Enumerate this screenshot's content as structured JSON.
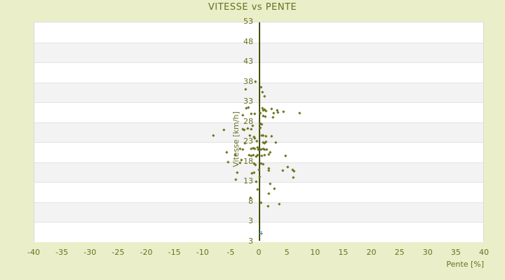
{
  "page": {
    "background": "#eaefc9"
  },
  "chart_data": {
    "type": "scatter",
    "title": "VITESSE vs PENTE",
    "xlabel": "Pente [%]",
    "ylabel": "Vitesse [km/h]",
    "xlim": [
      -40,
      40
    ],
    "ylim": [
      -2,
      53
    ],
    "xticks": [
      -40,
      -35,
      -30,
      -25,
      -20,
      -15,
      -10,
      -5,
      0,
      5,
      10,
      15,
      20,
      25,
      30,
      35,
      40
    ],
    "yticks": [
      53,
      48,
      43,
      38,
      33,
      28,
      23,
      18,
      13,
      8,
      3
    ],
    "y_axis_bottom_extra_label": "3",
    "grid": "horizontal-alternating-bands",
    "legend_position": "none",
    "zero_axis_line": true,
    "colors": {
      "background": "#eaefc9",
      "band_light": "#ffffff",
      "band_dark": "#f3f3f3",
      "grid_line": "#e3e3e3",
      "plot_border": "#d9d9d9",
      "text": "#687021",
      "point": "#6f7420",
      "zero_axis": "#465010",
      "highlight": "#2e8fa3"
    },
    "series": [
      {
        "name": "vitesse-points",
        "marker": "diamond",
        "color": "#6f7420",
        "points": [
          [
            -0.7,
            38.2
          ],
          [
            0.3,
            36.8
          ],
          [
            -2.4,
            36.4
          ],
          [
            0.5,
            35.6
          ],
          [
            0.9,
            34.6
          ],
          [
            -2.3,
            31.6
          ],
          [
            -2.0,
            31.8
          ],
          [
            0.5,
            31.6
          ],
          [
            0.9,
            31.2
          ],
          [
            0.6,
            31.0
          ],
          [
            2.1,
            31.4
          ],
          [
            3.2,
            31.1
          ],
          [
            4.3,
            30.7
          ],
          [
            7.1,
            30.3
          ],
          [
            -2.9,
            29.9
          ],
          [
            -1.5,
            30.1
          ],
          [
            -0.9,
            30.1
          ],
          [
            0.1,
            30.4
          ],
          [
            1.2,
            30.8
          ],
          [
            2.5,
            30.3
          ],
          [
            3.3,
            30.6
          ],
          [
            0.6,
            29.7
          ],
          [
            1.0,
            29.5
          ],
          [
            2.4,
            29.3
          ],
          [
            0.1,
            27.8
          ],
          [
            0.4,
            27.5
          ],
          [
            -1.2,
            27.2
          ],
          [
            -8.2,
            24.7
          ],
          [
            -6.3,
            26.1
          ],
          [
            -3.0,
            26.4
          ],
          [
            -2.7,
            26.2
          ],
          [
            -2.1,
            26.5
          ],
          [
            -1.5,
            26.3
          ],
          [
            0.1,
            26.7
          ],
          [
            0.4,
            24.7
          ],
          [
            0.7,
            24.7
          ],
          [
            1.1,
            24.5
          ],
          [
            2.1,
            24.5
          ],
          [
            -1.7,
            24.8
          ],
          [
            -1.0,
            24.4
          ],
          [
            -0.8,
            24.1
          ],
          [
            -2.6,
            22.9
          ],
          [
            -0.5,
            23.3
          ],
          [
            0.6,
            23.0
          ],
          [
            0.9,
            22.8
          ],
          [
            1.2,
            23.2
          ],
          [
            2.9,
            23.0
          ],
          [
            -3.4,
            21.4
          ],
          [
            -3.0,
            21.2
          ],
          [
            -1.5,
            21.4
          ],
          [
            -1.1,
            21.6
          ],
          [
            -0.8,
            21.4
          ],
          [
            -0.4,
            21.7
          ],
          [
            -0.2,
            21.3
          ],
          [
            0.3,
            21.3
          ],
          [
            0.6,
            21.5
          ],
          [
            0.9,
            21.3
          ],
          [
            1.3,
            21.3
          ],
          [
            -5.8,
            20.6
          ],
          [
            -4.3,
            19.9
          ],
          [
            1.9,
            20.5
          ],
          [
            1.6,
            20.1
          ],
          [
            -1.8,
            19.9
          ],
          [
            -1.5,
            19.6
          ],
          [
            -1.1,
            19.9
          ],
          [
            -0.6,
            19.5
          ],
          [
            -0.3,
            19.8
          ],
          [
            0.4,
            19.6
          ],
          [
            0.9,
            19.8
          ],
          [
            4.7,
            19.7
          ],
          [
            -5.6,
            18.1
          ],
          [
            -3.5,
            17.9
          ],
          [
            -3.2,
            18.7
          ],
          [
            -1.0,
            17.7
          ],
          [
            -0.7,
            17.4
          ],
          [
            0.3,
            17.7
          ],
          [
            0.6,
            17.5
          ],
          [
            -4.0,
            15.4
          ],
          [
            1.6,
            16.5
          ],
          [
            5.0,
            16.8
          ],
          [
            5.9,
            16.1
          ],
          [
            -1.4,
            15.3
          ],
          [
            -1.0,
            15.5
          ],
          [
            -0.1,
            16.2
          ],
          [
            1.6,
            16.0
          ],
          [
            4.2,
            16.0
          ],
          [
            6.1,
            15.8
          ],
          [
            0.0,
            14.4
          ],
          [
            6.0,
            14.3
          ],
          [
            -4.2,
            13.7
          ],
          [
            -0.6,
            13.2
          ],
          [
            1.9,
            12.6
          ],
          [
            2.7,
            11.5
          ],
          [
            -0.4,
            11.2
          ],
          [
            1.7,
            10.3
          ],
          [
            -1.6,
            9.1
          ],
          [
            0.3,
            7.9
          ],
          [
            3.5,
            7.6
          ],
          [
            1.5,
            7.1
          ]
        ]
      },
      {
        "name": "highlight-point",
        "marker": "cross",
        "color": "#2e8fa3",
        "points": [
          [
            0.3,
            0.2
          ]
        ]
      }
    ]
  }
}
